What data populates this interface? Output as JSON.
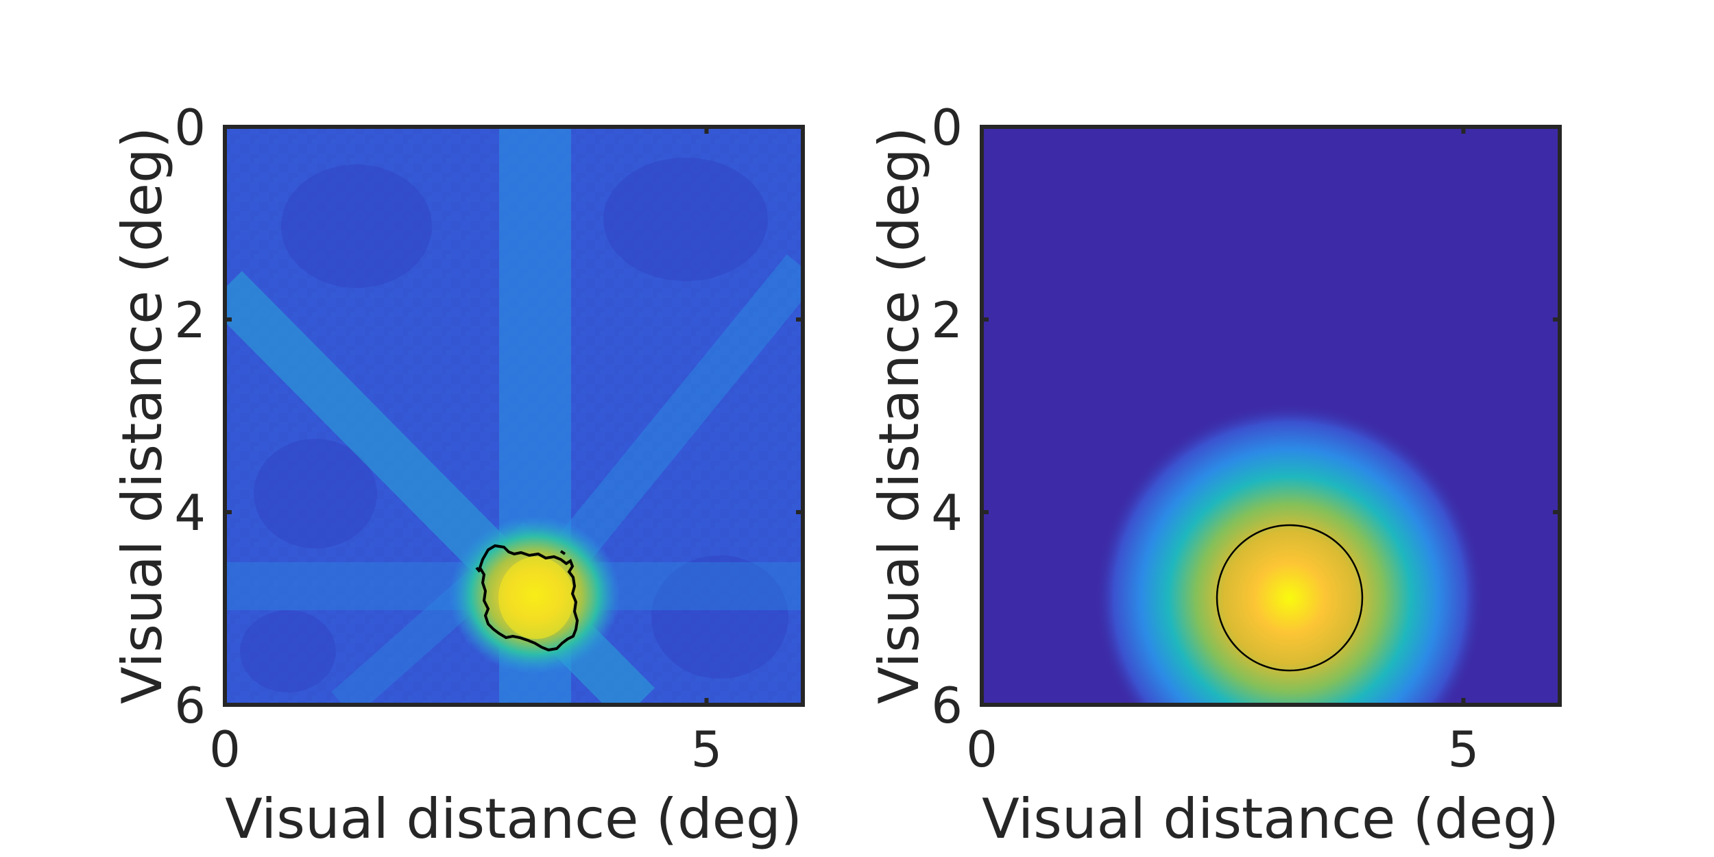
{
  "chart_data": [
    {
      "type": "heatmap",
      "title": "",
      "xlabel": "Visual distance (deg)",
      "ylabel": "Visual distance (deg)",
      "xlim": [
        0,
        6
      ],
      "ylim": [
        0,
        6
      ],
      "y_reversed": true,
      "xticks": [
        0,
        5
      ],
      "yticks": [
        0,
        2,
        4,
        6
      ],
      "grid": false,
      "legend": "none",
      "colormap": "parula",
      "description_features": {
        "peak_center_deg": [
          3.2,
          4.9
        ],
        "contour": "irregular black outline around peak",
        "streaks": [
          "vertical band near x=3.2",
          "diagonal band from upper-left to lower-right through peak",
          "diagonal band from right edge toward peak"
        ]
      }
    },
    {
      "type": "heatmap",
      "title": "",
      "xlabel": "Visual distance (deg)",
      "ylabel": "Visual distance (deg)",
      "xlim": [
        0,
        6
      ],
      "ylim": [
        0,
        6
      ],
      "y_reversed": true,
      "xticks": [
        0,
        5
      ],
      "yticks": [
        0,
        2,
        4,
        6
      ],
      "grid": false,
      "legend": "none",
      "colormap": "parula",
      "gaussian_center_deg": [
        3.25,
        4.9
      ],
      "contour_circle_radius_deg": 0.75
    }
  ],
  "colors": {
    "axis": "#262626",
    "background_low": "#3d2aa6",
    "mid_blue": "#2f7be8",
    "cyan": "#23b5c8",
    "green": "#7cc45a",
    "yellow": "#f8e61f",
    "contour": "#000000"
  }
}
